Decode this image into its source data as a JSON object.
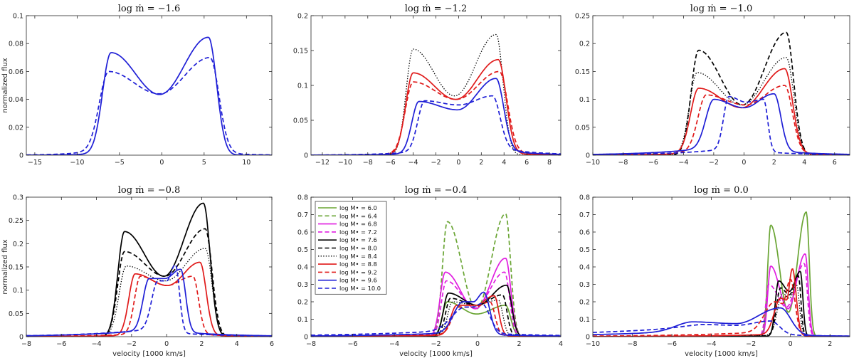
{
  "chart_data": [
    {
      "type": "line",
      "title": "log ṁ = −1.6",
      "xlabel": "",
      "ylabel": "normalized flux",
      "xlim": [
        -16,
        13
      ],
      "ylim": [
        0,
        0.1
      ],
      "xticks": [
        -15,
        -10,
        -5,
        0,
        5,
        10
      ],
      "yticks": [
        0,
        0.02,
        0.04,
        0.06,
        0.08,
        0.1
      ],
      "series": [
        {
          "name": "log M• = 9.6",
          "color": "#1f1fd6",
          "dash": "solid",
          "peaks": [
            {
              "x": -6.0,
              "y": 0.0735
            },
            {
              "x": 5.5,
              "y": 0.0845
            }
          ],
          "trough": 0.0435,
          "tails": [
            0.002,
            0.0
          ]
        },
        {
          "name": "log M• = 10.0",
          "color": "#1f1fd6",
          "dash": "dashed",
          "peaks": [
            {
              "x": -6.3,
              "y": 0.06
            },
            {
              "x": 5.7,
              "y": 0.07
            }
          ],
          "trough": 0.044,
          "tails": [
            0.006,
            0.003
          ]
        }
      ]
    },
    {
      "type": "line",
      "title": "log ṁ = −1.2",
      "xlabel": "",
      "ylabel": "",
      "xlim": [
        -13,
        9
      ],
      "ylim": [
        0,
        0.2
      ],
      "xticks": [
        -12,
        -10,
        -8,
        -6,
        -4,
        -2,
        0,
        2,
        4,
        6,
        8
      ],
      "yticks": [
        0,
        0.05,
        0.1,
        0.15,
        0.2
      ],
      "series": [
        {
          "name": "log M• = 8.4",
          "color": "#000000",
          "dash": "dotted",
          "peaks": [
            {
              "x": -4.0,
              "y": 0.152
            },
            {
              "x": 3.3,
              "y": 0.173
            }
          ],
          "trough": 0.085,
          "tails": [
            0.0,
            0.0
          ]
        },
        {
          "name": "log M• = 8.8",
          "color": "#e01a1a",
          "dash": "solid",
          "peaks": [
            {
              "x": -4.0,
              "y": 0.118
            },
            {
              "x": 3.5,
              "y": 0.137
            }
          ],
          "trough": 0.08,
          "tails": [
            0.002,
            0.003
          ]
        },
        {
          "name": "log M• = 9.2",
          "color": "#e01a1a",
          "dash": "dashed",
          "peaks": [
            {
              "x": -4.0,
              "y": 0.105
            },
            {
              "x": 3.6,
              "y": 0.12
            }
          ],
          "trough": 0.08,
          "tails": [
            0.004,
            0.006
          ]
        },
        {
          "name": "log M• = 9.6",
          "color": "#1f1fd6",
          "dash": "solid",
          "peaks": [
            {
              "x": -3.5,
              "y": 0.077
            },
            {
              "x": 3.3,
              "y": 0.11
            }
          ],
          "trough": 0.065,
          "tails": [
            0.003,
            0.008
          ]
        },
        {
          "name": "log M• = 10.0",
          "color": "#1f1fd6",
          "dash": "dashed",
          "peaks": [
            {
              "x": -3.0,
              "y": 0.078
            },
            {
              "x": 3.0,
              "y": 0.085
            }
          ],
          "trough": 0.072,
          "tails": [
            0.007,
            0.012
          ]
        }
      ]
    },
    {
      "type": "line",
      "title": "log ṁ = −1.0",
      "xlabel": "",
      "ylabel": "",
      "xlim": [
        -10,
        7
      ],
      "ylim": [
        0,
        0.25
      ],
      "xticks": [
        -10,
        -8,
        -6,
        -4,
        -2,
        0,
        2,
        4,
        6
      ],
      "yticks": [
        0,
        0.05,
        0.1,
        0.15,
        0.2,
        0.25
      ],
      "series": [
        {
          "name": "log M• = 8.0",
          "color": "#000000",
          "dash": "dashed",
          "peaks": [
            {
              "x": -3.0,
              "y": 0.188
            },
            {
              "x": 2.8,
              "y": 0.22
            }
          ],
          "trough": 0.09,
          "tails": [
            0.0,
            0.0
          ]
        },
        {
          "name": "log M• = 8.4",
          "color": "#000000",
          "dash": "dotted",
          "peaks": [
            {
              "x": -3.1,
              "y": 0.148
            },
            {
              "x": 2.8,
              "y": 0.175
            }
          ],
          "trough": 0.09,
          "tails": [
            0.0,
            0.0
          ]
        },
        {
          "name": "log M• = 8.8",
          "color": "#e01a1a",
          "dash": "solid",
          "peaks": [
            {
              "x": -3.0,
              "y": 0.12
            },
            {
              "x": 2.7,
              "y": 0.155
            }
          ],
          "trough": 0.085,
          "tails": [
            0.004,
            0.003
          ]
        },
        {
          "name": "log M• = 9.2",
          "color": "#e01a1a",
          "dash": "dashed",
          "peaks": [
            {
              "x": -2.5,
              "y": 0.108
            },
            {
              "x": 2.7,
              "y": 0.125
            }
          ],
          "trough": 0.09,
          "tails": [
            0.008,
            0.005
          ]
        },
        {
          "name": "log M• = 9.6",
          "color": "#1f1fd6",
          "dash": "solid",
          "peaks": [
            {
              "x": -2.0,
              "y": 0.1
            },
            {
              "x": 2.0,
              "y": 0.11
            }
          ],
          "trough": 0.085,
          "tails": [
            0.015,
            0.008
          ]
        },
        {
          "name": "log M• = 10.0",
          "color": "#1f1fd6",
          "dash": "dashed",
          "peaks": [
            {
              "x": -1.0,
              "y": 0.105
            },
            {
              "x": 1.3,
              "y": 0.1
            }
          ],
          "trough": 0.095,
          "tails": [
            0.012,
            0.006
          ]
        }
      ]
    },
    {
      "type": "line",
      "title": "log ṁ = −0.8",
      "xlabel": "velocity [1000 km/s]",
      "ylabel": "normalized flux",
      "xlim": [
        -8,
        6
      ],
      "ylim": [
        0,
        0.3
      ],
      "xticks": [
        -8,
        -6,
        -4,
        -2,
        0,
        2,
        4,
        6
      ],
      "yticks": [
        0,
        0.05,
        0.1,
        0.15,
        0.2,
        0.25,
        0.3
      ],
      "series": [
        {
          "name": "log M• = 7.6",
          "color": "#000000",
          "dash": "solid",
          "peaks": [
            {
              "x": -2.4,
              "y": 0.226
            },
            {
              "x": 2.1,
              "y": 0.287
            }
          ],
          "trough": 0.13,
          "tails": [
            0.0,
            0.0
          ]
        },
        {
          "name": "log M• = 8.0",
          "color": "#000000",
          "dash": "dashed",
          "peaks": [
            {
              "x": -2.4,
              "y": 0.183
            },
            {
              "x": 2.2,
              "y": 0.232
            }
          ],
          "trough": 0.13,
          "tails": [
            0.0,
            0.0
          ]
        },
        {
          "name": "log M• = 8.4",
          "color": "#000000",
          "dash": "dotted",
          "peaks": [
            {
              "x": -2.3,
              "y": 0.152
            },
            {
              "x": 2.2,
              "y": 0.19
            }
          ],
          "trough": 0.12,
          "tails": [
            0.002,
            0.0
          ]
        },
        {
          "name": "log M• = 8.8",
          "color": "#e01a1a",
          "dash": "solid",
          "peaks": [
            {
              "x": -1.8,
              "y": 0.135
            },
            {
              "x": 1.9,
              "y": 0.16
            }
          ],
          "trough": 0.11,
          "tails": [
            0.003,
            0.003
          ]
        },
        {
          "name": "log M• = 9.2",
          "color": "#e01a1a",
          "dash": "dashed",
          "peaks": [
            {
              "x": -1.5,
              "y": 0.13
            },
            {
              "x": 1.5,
              "y": 0.13
            }
          ],
          "trough": 0.11,
          "tails": [
            0.006,
            0.005
          ]
        },
        {
          "name": "log M• = 9.6",
          "color": "#1f1fd6",
          "dash": "solid",
          "peaks": [
            {
              "x": -1.0,
              "y": 0.125
            },
            {
              "x": 0.8,
              "y": 0.145
            }
          ],
          "trough": 0.125,
          "tails": [
            0.015,
            0.01
          ]
        },
        {
          "name": "log M• = 10.0",
          "color": "#1f1fd6",
          "dash": "dashed",
          "peaks": [
            {
              "x": -0.5,
              "y": 0.12
            },
            {
              "x": 0.5,
              "y": 0.155
            }
          ],
          "trough": 0.12,
          "tails": [
            0.018,
            0.008
          ]
        }
      ]
    },
    {
      "type": "line",
      "title": "log ṁ = −0.4",
      "xlabel": "velocity [1000 km/s]",
      "ylabel": "",
      "xlim": [
        -8,
        4
      ],
      "ylim": [
        0,
        0.8
      ],
      "xticks": [
        -8,
        -6,
        -4,
        -2,
        0,
        2,
        4
      ],
      "yticks": [
        0,
        0.1,
        0.2,
        0.3,
        0.4,
        0.5,
        0.6,
        0.7,
        0.8
      ],
      "legend_loc": "top-left",
      "series": [
        {
          "name": "log M• = 6.0",
          "color": "#6aa534",
          "dash": "solid",
          "peaks": [
            {
              "x": -1.45,
              "y": 0.2
            },
            {
              "x": 1.35,
              "y": 0.18
            }
          ],
          "trough": 0.13,
          "tails": [
            0.0,
            0.0
          ]
        },
        {
          "name": "log M• = 6.4",
          "color": "#6aa534",
          "dash": "dashed",
          "peaks": [
            {
              "x": -1.45,
              "y": 0.66
            },
            {
              "x": 1.35,
              "y": 0.705
            }
          ],
          "trough": 0.16,
          "tails": [
            0.0,
            0.0
          ]
        },
        {
          "name": "log M• = 6.8",
          "color": "#e01ee0",
          "dash": "solid",
          "peaks": [
            {
              "x": -1.55,
              "y": 0.37
            },
            {
              "x": 1.35,
              "y": 0.45
            }
          ],
          "trough": 0.16,
          "tails": [
            0.0,
            0.0
          ]
        },
        {
          "name": "log M• = 7.2",
          "color": "#e01ee0",
          "dash": "dashed",
          "peaks": [
            {
              "x": -1.5,
              "y": 0.32
            },
            {
              "x": 1.3,
              "y": 0.37
            }
          ],
          "trough": 0.17,
          "tails": [
            0.0,
            0.0
          ]
        },
        {
          "name": "log M• = 7.6",
          "color": "#000000",
          "dash": "solid",
          "peaks": [
            {
              "x": -1.4,
              "y": 0.25
            },
            {
              "x": 1.4,
              "y": 0.295
            }
          ],
          "trough": 0.18,
          "tails": [
            0.0,
            0.0
          ]
        },
        {
          "name": "log M• = 8.0",
          "color": "#000000",
          "dash": "dashed",
          "peaks": [
            {
              "x": -1.3,
              "y": 0.22
            },
            {
              "x": 1.2,
              "y": 0.24
            }
          ],
          "trough": 0.18,
          "tails": [
            0.002,
            0.0
          ]
        },
        {
          "name": "log M• = 8.4",
          "color": "#000000",
          "dash": "dotted",
          "peaks": [
            {
              "x": -1.2,
              "y": 0.2
            },
            {
              "x": 1.0,
              "y": 0.21
            }
          ],
          "trough": 0.18,
          "tails": [
            0.004,
            0.002
          ]
        },
        {
          "name": "log M• = 8.8",
          "color": "#e01a1a",
          "dash": "solid",
          "peaks": [
            {
              "x": -1.0,
              "y": 0.18
            },
            {
              "x": 0.8,
              "y": 0.235
            }
          ],
          "trough": 0.18,
          "tails": [
            0.01,
            0.005
          ]
        },
        {
          "name": "log M• = 9.2",
          "color": "#e01a1a",
          "dash": "dashed",
          "peaks": [
            {
              "x": -0.9,
              "y": 0.17
            },
            {
              "x": 0.6,
              "y": 0.2
            }
          ],
          "trough": 0.17,
          "tails": [
            0.015,
            0.008
          ]
        },
        {
          "name": "log M• = 9.6",
          "color": "#1f1fd6",
          "dash": "solid",
          "peaks": [
            {
              "x": -0.7,
              "y": 0.2
            },
            {
              "x": 0.3,
              "y": 0.255
            }
          ],
          "trough": 0.2,
          "tails": [
            0.025,
            0.012
          ]
        },
        {
          "name": "log M• = 10.0",
          "color": "#1f1fd6",
          "dash": "dashed",
          "peaks": [
            {
              "x": -0.6,
              "y": 0.17
            },
            {
              "x": 0.2,
              "y": 0.19
            }
          ],
          "trough": 0.17,
          "tails": [
            0.04,
            0.02
          ]
        }
      ]
    },
    {
      "type": "line",
      "title": "log ṁ = 0.0",
      "xlabel": "velocity [1000 km/s]",
      "ylabel": "",
      "xlim": [
        -10,
        3
      ],
      "ylim": [
        0,
        0.8
      ],
      "xticks": [
        -10,
        -8,
        -6,
        -4,
        -2,
        0,
        2
      ],
      "yticks": [
        0,
        0.1,
        0.2,
        0.3,
        0.4,
        0.5,
        0.6,
        0.7,
        0.8
      ],
      "series": [
        {
          "name": "log M• = 6.0",
          "color": "#6aa534",
          "dash": "solid",
          "peaks": [
            {
              "x": -1.0,
              "y": 0.64
            },
            {
              "x": 0.8,
              "y": 0.715
            }
          ],
          "trough": 0.14,
          "tails": [
            0.0,
            0.0
          ]
        },
        {
          "name": "log M• = 6.8",
          "color": "#e01ee0",
          "dash": "solid",
          "peaks": [
            {
              "x": -1.0,
              "y": 0.405
            },
            {
              "x": 0.75,
              "y": 0.475
            }
          ],
          "trough": 0.16,
          "tails": [
            0.0,
            0.0
          ]
        },
        {
          "name": "log M• = 7.2",
          "color": "#e01ee0",
          "dash": "dashed",
          "peaks": [
            {
              "x": -1.1,
              "y": 0.3
            },
            {
              "x": 0.7,
              "y": 0.42
            }
          ],
          "trough": 0.17,
          "tails": [
            0.0,
            0.0
          ]
        },
        {
          "name": "log M• = 7.6",
          "color": "#000000",
          "dash": "solid",
          "peaks": [
            {
              "x": -0.6,
              "y": 0.32
            },
            {
              "x": 0.5,
              "y": 0.375
            }
          ],
          "trough": 0.26,
          "tails": [
            0.003,
            0.0
          ]
        },
        {
          "name": "log M• = 8.0",
          "color": "#000000",
          "dash": "dashed",
          "peaks": [
            {
              "x": -0.5,
              "y": 0.28
            },
            {
              "x": 0.4,
              "y": 0.35
            }
          ],
          "trough": 0.24,
          "tails": [
            0.006,
            0.0
          ]
        },
        {
          "name": "log M• = 8.4",
          "color": "#000000",
          "dash": "dotted",
          "peaks": [
            {
              "x": -0.4,
              "y": 0.25
            },
            {
              "x": 0.3,
              "y": 0.3
            }
          ],
          "trough": 0.22,
          "tails": [
            0.01,
            0.002
          ]
        },
        {
          "name": "log M• = 8.8",
          "color": "#e01a1a",
          "dash": "solid",
          "peaks": [
            {
              "x": -0.5,
              "y": 0.22
            },
            {
              "x": 0.1,
              "y": 0.39
            }
          ],
          "trough": 0.21,
          "tails": [
            0.015,
            0.005
          ]
        },
        {
          "name": "log M• = 9.2",
          "color": "#e01a1a",
          "dash": "dashed",
          "peaks": [
            {
              "x": -0.8,
              "y": 0.2
            },
            {
              "x": 0.0,
              "y": 0.33
            }
          ],
          "trough": 0.19,
          "tails": [
            0.03,
            0.008
          ]
        },
        {
          "name": "log M• = 9.6",
          "color": "#1f1fd6",
          "dash": "solid",
          "peaks": [
            {
              "x": -5.0,
              "y": 0.085
            },
            {
              "x": -0.5,
              "y": 0.165
            }
          ],
          "trough": 0.075,
          "tails": [
            0.035,
            0.01
          ]
        },
        {
          "name": "log M• = 10.0",
          "color": "#1f1fd6",
          "dash": "dashed",
          "peaks": [
            {
              "x": -4.5,
              "y": 0.07
            },
            {
              "x": -1.0,
              "y": 0.09
            }
          ],
          "trough": 0.065,
          "tails": [
            0.06,
            0.012
          ]
        }
      ]
    }
  ]
}
